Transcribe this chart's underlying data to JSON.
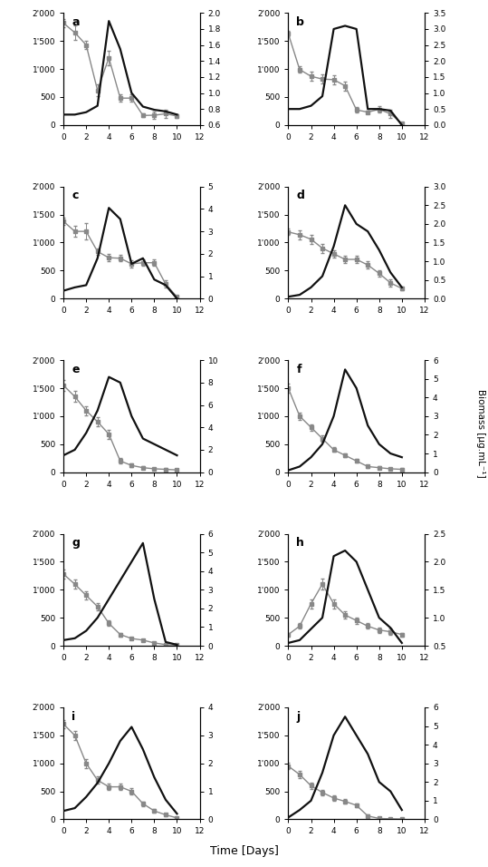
{
  "panels": [
    {
      "label": "a",
      "oxalate": {
        "x": [
          0,
          1,
          2,
          3,
          4,
          5,
          6,
          7,
          8,
          9,
          10
        ],
        "y": [
          1820,
          1650,
          1430,
          620,
          1200,
          480,
          480,
          170,
          175,
          200,
          160
        ],
        "yerr": [
          80,
          130,
          80,
          100,
          130,
          60,
          60,
          30,
          60,
          80,
          30
        ]
      },
      "biomass": {
        "x": [
          0,
          1,
          2,
          3,
          4,
          5,
          6,
          7,
          8,
          9,
          10
        ],
        "y": [
          0.73,
          0.73,
          0.76,
          0.84,
          1.9,
          1.55,
          1.0,
          0.83,
          0.79,
          0.77,
          0.73
        ]
      },
      "ylim_left": [
        0,
        2000
      ],
      "ylim_right": [
        0.6,
        2.0
      ],
      "yticks_left": [
        0,
        500,
        1000,
        1500,
        2000
      ],
      "yticks_right": [
        0.6,
        0.8,
        1.0,
        1.2,
        1.4,
        1.6,
        1.8,
        2.0
      ]
    },
    {
      "label": "b",
      "oxalate": {
        "x": [
          0,
          1,
          2,
          3,
          4,
          5,
          6,
          7,
          8,
          9,
          10
        ],
        "y": [
          1630,
          990,
          870,
          820,
          810,
          700,
          270,
          230,
          280,
          200,
          30
        ],
        "yerr": [
          50,
          60,
          80,
          80,
          80,
          80,
          50,
          30,
          50,
          80,
          20
        ]
      },
      "biomass": {
        "x": [
          0,
          1,
          2,
          3,
          4,
          5,
          6,
          7,
          8,
          9,
          10
        ],
        "y": [
          0.5,
          0.5,
          0.6,
          0.9,
          3.0,
          3.1,
          3.0,
          0.5,
          0.5,
          0.45,
          0.0
        ]
      },
      "ylim_left": [
        0,
        2000
      ],
      "ylim_right": [
        0,
        3.5
      ],
      "yticks_left": [
        0,
        500,
        1000,
        1500,
        2000
      ],
      "yticks_right": [
        0,
        0.5,
        1.0,
        1.5,
        2.0,
        2.5,
        3.0,
        3.5
      ]
    },
    {
      "label": "c",
      "oxalate": {
        "x": [
          0,
          1,
          2,
          3,
          4,
          5,
          6,
          7,
          8,
          9,
          10
        ],
        "y": [
          1380,
          1200,
          1200,
          840,
          730,
          720,
          620,
          640,
          640,
          260,
          30
        ],
        "yerr": [
          60,
          100,
          150,
          60,
          60,
          60,
          60,
          60,
          60,
          60,
          20
        ]
      },
      "biomass": {
        "x": [
          0,
          1,
          2,
          3,
          4,
          5,
          6,
          7,
          8,
          9,
          10
        ],
        "y": [
          0.35,
          0.5,
          0.6,
          1.8,
          4.05,
          3.55,
          1.55,
          1.8,
          0.85,
          0.6,
          0.0
        ]
      },
      "ylim_left": [
        0,
        2000
      ],
      "ylim_right": [
        0,
        5
      ],
      "yticks_left": [
        0,
        500,
        1000,
        1500,
        2000
      ],
      "yticks_right": [
        0,
        1,
        2,
        3,
        4,
        5
      ]
    },
    {
      "label": "d",
      "oxalate": {
        "x": [
          0,
          1,
          2,
          3,
          4,
          5,
          6,
          7,
          8,
          9,
          10
        ],
        "y": [
          1190,
          1140,
          1060,
          900,
          800,
          700,
          700,
          600,
          450,
          280,
          180
        ],
        "yerr": [
          60,
          80,
          80,
          80,
          60,
          60,
          60,
          60,
          60,
          60,
          30
        ]
      },
      "biomass": {
        "x": [
          0,
          1,
          2,
          3,
          4,
          5,
          6,
          7,
          8,
          9,
          10
        ],
        "y": [
          0.05,
          0.1,
          0.3,
          0.6,
          1.4,
          2.5,
          2.0,
          1.8,
          1.3,
          0.7,
          0.3
        ]
      },
      "ylim_left": [
        0,
        2000
      ],
      "ylim_right": [
        0,
        3
      ],
      "yticks_left": [
        0,
        500,
        1000,
        1500,
        2000
      ],
      "yticks_right": [
        0,
        0.5,
        1.0,
        1.5,
        2.0,
        2.5,
        3.0
      ]
    },
    {
      "label": "e",
      "oxalate": {
        "x": [
          0,
          1,
          2,
          3,
          4,
          5,
          6,
          7,
          8,
          9,
          10
        ],
        "y": [
          1550,
          1350,
          1100,
          900,
          680,
          200,
          120,
          80,
          60,
          50,
          40
        ],
        "yerr": [
          100,
          100,
          80,
          80,
          80,
          50,
          30,
          20,
          20,
          20,
          20
        ]
      },
      "biomass": {
        "x": [
          0,
          1,
          2,
          3,
          4,
          5,
          6,
          7,
          8,
          9,
          10
        ],
        "y": [
          1.5,
          2.0,
          3.5,
          5.5,
          8.5,
          8.0,
          5.0,
          3.0,
          2.5,
          2.0,
          1.5
        ]
      },
      "ylim_left": [
        0,
        2000
      ],
      "ylim_right": [
        0,
        10
      ],
      "yticks_left": [
        0,
        500,
        1000,
        1500,
        2000
      ],
      "yticks_right": [
        0,
        2,
        4,
        6,
        8,
        10
      ]
    },
    {
      "label": "f",
      "oxalate": {
        "x": [
          0,
          1,
          2,
          3,
          4,
          5,
          6,
          7,
          8,
          9,
          10
        ],
        "y": [
          1500,
          1000,
          800,
          600,
          400,
          300,
          200,
          100,
          80,
          60,
          50
        ],
        "yerr": [
          80,
          60,
          60,
          50,
          40,
          30,
          30,
          20,
          20,
          20,
          20
        ]
      },
      "biomass": {
        "x": [
          0,
          1,
          2,
          3,
          4,
          5,
          6,
          7,
          8,
          9,
          10
        ],
        "y": [
          0.1,
          0.3,
          0.8,
          1.5,
          3.0,
          5.5,
          4.5,
          2.5,
          1.5,
          1.0,
          0.8
        ]
      },
      "ylim_left": [
        0,
        2000
      ],
      "ylim_right": [
        0,
        6
      ],
      "yticks_left": [
        0,
        500,
        1000,
        1500,
        2000
      ],
      "yticks_right": [
        0,
        1,
        2,
        3,
        4,
        5,
        6
      ]
    },
    {
      "label": "g",
      "oxalate": {
        "x": [
          0,
          1,
          2,
          3,
          4,
          5,
          6,
          7,
          8,
          9,
          10
        ],
        "y": [
          1280,
          1100,
          900,
          700,
          400,
          200,
          130,
          100,
          50,
          20,
          10
        ],
        "yerr": [
          80,
          80,
          70,
          60,
          50,
          30,
          20,
          20,
          15,
          10,
          5
        ]
      },
      "biomass": {
        "x": [
          0,
          1,
          2,
          3,
          4,
          5,
          6,
          7,
          8,
          9,
          10
        ],
        "y": [
          0.3,
          0.4,
          0.8,
          1.5,
          2.5,
          3.5,
          4.5,
          5.5,
          2.5,
          0.2,
          0.05
        ]
      },
      "ylim_left": [
        0,
        2000
      ],
      "ylim_right": [
        0,
        6
      ],
      "yticks_left": [
        0,
        500,
        1000,
        1500,
        2000
      ],
      "yticks_right": [
        0,
        1,
        2,
        3,
        4,
        5,
        6
      ]
    },
    {
      "label": "h",
      "oxalate": {
        "x": [
          0,
          1,
          2,
          3,
          4,
          5,
          6,
          7,
          8,
          9,
          10
        ],
        "y": [
          200,
          350,
          750,
          1100,
          750,
          550,
          450,
          350,
          280,
          250,
          200
        ],
        "yerr": [
          30,
          50,
          80,
          100,
          80,
          60,
          60,
          50,
          50,
          50,
          30
        ]
      },
      "biomass": {
        "x": [
          0,
          1,
          2,
          3,
          4,
          5,
          6,
          7,
          8,
          9,
          10
        ],
        "y": [
          0.55,
          0.6,
          0.8,
          1.0,
          2.1,
          2.2,
          2.0,
          1.5,
          1.0,
          0.82,
          0.55
        ]
      },
      "ylim_left": [
        0,
        2000
      ],
      "ylim_right": [
        0.5,
        2.5
      ],
      "yticks_left": [
        0,
        500,
        1000,
        1500,
        2000
      ],
      "yticks_right": [
        0.5,
        1.0,
        1.5,
        2.0,
        2.5
      ]
    },
    {
      "label": "i",
      "oxalate": {
        "x": [
          0,
          1,
          2,
          3,
          4,
          5,
          6,
          7,
          8,
          9,
          10
        ],
        "y": [
          1700,
          1500,
          1000,
          700,
          580,
          580,
          500,
          280,
          150,
          80,
          25
        ],
        "yerr": [
          80,
          80,
          80,
          60,
          60,
          60,
          50,
          40,
          30,
          20,
          20
        ]
      },
      "biomass": {
        "x": [
          0,
          1,
          2,
          3,
          4,
          5,
          6,
          7,
          8,
          9,
          10
        ],
        "y": [
          0.3,
          0.4,
          0.8,
          1.3,
          2.0,
          2.8,
          3.3,
          2.5,
          1.5,
          0.7,
          0.2
        ]
      },
      "ylim_left": [
        0,
        2000
      ],
      "ylim_right": [
        0,
        4
      ],
      "yticks_left": [
        0,
        500,
        1000,
        1500,
        2000
      ],
      "yticks_right": [
        0,
        1,
        2,
        3,
        4
      ]
    },
    {
      "label": "j",
      "oxalate": {
        "x": [
          0,
          1,
          2,
          3,
          4,
          5,
          6,
          7,
          8,
          9,
          10
        ],
        "y": [
          950,
          800,
          600,
          480,
          380,
          320,
          250,
          60,
          15,
          10,
          5
        ],
        "yerr": [
          60,
          60,
          60,
          50,
          50,
          40,
          30,
          20,
          10,
          10,
          5
        ]
      },
      "biomass": {
        "x": [
          0,
          1,
          2,
          3,
          4,
          5,
          6,
          7,
          8,
          9,
          10
        ],
        "y": [
          0.1,
          0.5,
          1.0,
          2.5,
          4.5,
          5.5,
          4.5,
          3.5,
          2.0,
          1.5,
          0.5
        ]
      },
      "ylim_left": [
        0,
        2000
      ],
      "ylim_right": [
        0,
        6
      ],
      "yticks_left": [
        0,
        500,
        1000,
        1500,
        2000
      ],
      "yticks_right": [
        0,
        1,
        2,
        3,
        4,
        5,
        6
      ]
    }
  ],
  "oxalate_color": "#888888",
  "biomass_color": "#111111",
  "xlabel": "Time [Days]",
  "ylabel_right": "Biomass [μg.mL⁻¹]",
  "xlim": [
    0,
    12
  ],
  "xticks": [
    0,
    2,
    4,
    6,
    8,
    10,
    12
  ]
}
